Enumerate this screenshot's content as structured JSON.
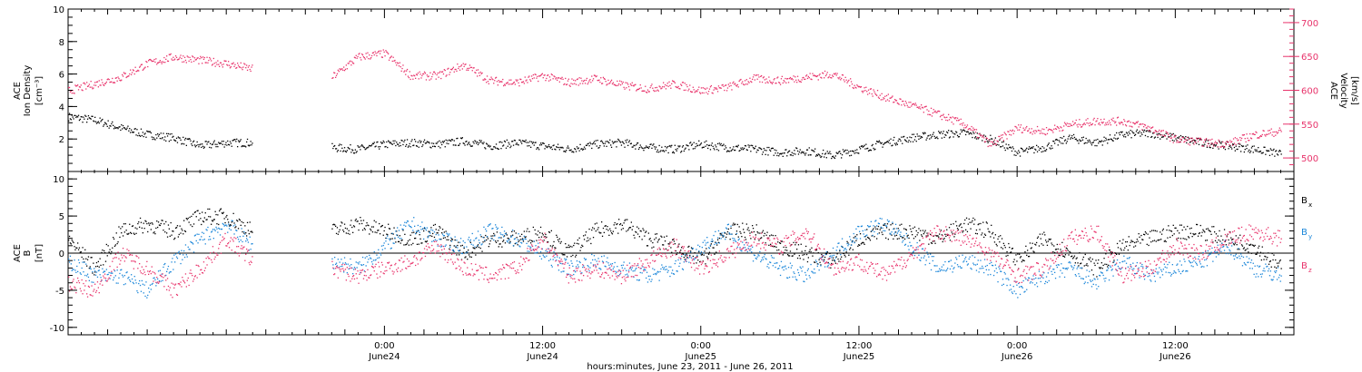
{
  "chart_data": [
    {
      "type": "scatter",
      "panel": "plasma",
      "left_axis": {
        "label_lines": [
          "ACE",
          "Ion Density",
          "[cm⁻³]"
        ],
        "ylim": [
          0,
          10
        ],
        "ticks": [
          2,
          4,
          6,
          8,
          10
        ],
        "tick_labels": [
          "2",
          "4",
          "6",
          "8",
          "10"
        ]
      },
      "right_axis": {
        "label_lines": [
          "ACE",
          "Velocity",
          "[km/s]"
        ],
        "ylim": [
          480,
          720
        ],
        "ticks": [
          500,
          550,
          600,
          650,
          700
        ],
        "tick_labels": [
          "500",
          "550",
          "600",
          "650",
          "700"
        ],
        "color": "#e8336b"
      },
      "series": [
        {
          "color": "#000000",
          "axis": "left",
          "points": [
            [
              0,
              3.4
            ],
            [
              2,
              3.2
            ],
            [
              4,
              2.7
            ],
            [
              6,
              2.3
            ],
            [
              8,
              2.1
            ],
            [
              10,
              1.6
            ],
            [
              12,
              1.8
            ],
            [
              14,
              1.8
            ],
            [
              20,
              1.5
            ],
            [
              22,
              1.4
            ],
            [
              24,
              1.7
            ],
            [
              26,
              1.8
            ],
            [
              28,
              1.7
            ],
            [
              30,
              1.9
            ],
            [
              32,
              1.6
            ],
            [
              34,
              1.8
            ],
            [
              36,
              1.6
            ],
            [
              38,
              1.4
            ],
            [
              40,
              1.7
            ],
            [
              42,
              1.8
            ],
            [
              44,
              1.5
            ],
            [
              46,
              1.4
            ],
            [
              48,
              1.7
            ],
            [
              50,
              1.5
            ],
            [
              52,
              1.4
            ],
            [
              54,
              1.2
            ],
            [
              56,
              1.3
            ],
            [
              58,
              1.0
            ],
            [
              60,
              1.4
            ],
            [
              62,
              1.8
            ],
            [
              64,
              2.1
            ],
            [
              66,
              2.3
            ],
            [
              68,
              2.4
            ],
            [
              70,
              2.0
            ],
            [
              72,
              1.2
            ],
            [
              74,
              1.5
            ],
            [
              76,
              2.1
            ],
            [
              78,
              1.8
            ],
            [
              80,
              2.3
            ],
            [
              82,
              2.4
            ],
            [
              84,
              2.1
            ],
            [
              86,
              1.8
            ],
            [
              88,
              1.6
            ],
            [
              90,
              1.4
            ],
            [
              92,
              1.1
            ]
          ]
        },
        {
          "color": "#e8336b",
          "axis": "right",
          "points": [
            [
              0,
              600
            ],
            [
              2,
              610
            ],
            [
              4,
              620
            ],
            [
              6,
              640
            ],
            [
              8,
              650
            ],
            [
              10,
              645
            ],
            [
              12,
              640
            ],
            [
              14,
              632
            ],
            [
              20,
              620
            ],
            [
              22,
              650
            ],
            [
              24,
              655
            ],
            [
              26,
              622
            ],
            [
              28,
              622
            ],
            [
              30,
              638
            ],
            [
              32,
              615
            ],
            [
              34,
              612
            ],
            [
              36,
              622
            ],
            [
              38,
              612
            ],
            [
              40,
              618
            ],
            [
              42,
              608
            ],
            [
              44,
              603
            ],
            [
              46,
              610
            ],
            [
              48,
              600
            ],
            [
              50,
              605
            ],
            [
              52,
              618
            ],
            [
              54,
              615
            ],
            [
              56,
              620
            ],
            [
              58,
              625
            ],
            [
              60,
              605
            ],
            [
              62,
              590
            ],
            [
              64,
              578
            ],
            [
              66,
              565
            ],
            [
              68,
              550
            ],
            [
              70,
              520
            ],
            [
              72,
              545
            ],
            [
              74,
              540
            ],
            [
              76,
              550
            ],
            [
              78,
              555
            ],
            [
              80,
              555
            ],
            [
              82,
              545
            ],
            [
              84,
              528
            ],
            [
              86,
              524
            ],
            [
              88,
              522
            ],
            [
              90,
              535
            ],
            [
              92,
              540
            ]
          ]
        }
      ]
    },
    {
      "type": "scatter",
      "panel": "magnetic-field",
      "left_axis": {
        "label_lines": [
          "ACE",
          "B",
          "[nT]"
        ],
        "ylim": [
          -11,
          11
        ],
        "ticks": [
          -10,
          -5,
          0,
          5,
          10
        ],
        "tick_labels": [
          "-10",
          "-5",
          "0",
          "5",
          "10"
        ]
      },
      "zero_line": true,
      "legend": [
        {
          "label": "B",
          "sub": "x",
          "color": "#000000"
        },
        {
          "label": "B",
          "sub": "y",
          "color": "#1a86d9"
        },
        {
          "label": "B",
          "sub": "z",
          "color": "#e8336b"
        }
      ],
      "legend_position": "right",
      "series": [
        {
          "name": "Bx",
          "color": "#000000",
          "points": [
            [
              0,
              2
            ],
            [
              2,
              -2
            ],
            [
              4,
              3
            ],
            [
              6,
              4
            ],
            [
              8,
              3
            ],
            [
              10,
              5
            ],
            [
              12,
              5
            ],
            [
              14,
              3
            ],
            [
              20,
              3
            ],
            [
              22,
              4
            ],
            [
              24,
              3
            ],
            [
              26,
              2
            ],
            [
              28,
              3
            ],
            [
              30,
              0
            ],
            [
              32,
              2
            ],
            [
              34,
              2
            ],
            [
              36,
              3
            ],
            [
              38,
              0
            ],
            [
              40,
              3
            ],
            [
              42,
              4
            ],
            [
              44,
              2
            ],
            [
              46,
              1
            ],
            [
              48,
              -1
            ],
            [
              50,
              3
            ],
            [
              52,
              3
            ],
            [
              54,
              1
            ],
            [
              56,
              0
            ],
            [
              58,
              -1
            ],
            [
              60,
              2
            ],
            [
              62,
              3
            ],
            [
              64,
              3
            ],
            [
              66,
              2
            ],
            [
              68,
              4
            ],
            [
              70,
              3
            ],
            [
              72,
              -1
            ],
            [
              74,
              2
            ],
            [
              76,
              0
            ],
            [
              78,
              -2
            ],
            [
              80,
              1
            ],
            [
              82,
              2
            ],
            [
              84,
              3
            ],
            [
              86,
              3
            ],
            [
              88,
              2
            ],
            [
              90,
              1
            ],
            [
              92,
              -2
            ]
          ]
        },
        {
          "name": "By",
          "color": "#1a86d9",
          "points": [
            [
              0,
              -1
            ],
            [
              2,
              -3
            ],
            [
              4,
              -3
            ],
            [
              6,
              -5
            ],
            [
              8,
              -1
            ],
            [
              10,
              2
            ],
            [
              12,
              4
            ],
            [
              14,
              1
            ],
            [
              20,
              -1
            ],
            [
              22,
              -2
            ],
            [
              24,
              1
            ],
            [
              26,
              4
            ],
            [
              28,
              2
            ],
            [
              30,
              1
            ],
            [
              32,
              3
            ],
            [
              34,
              2
            ],
            [
              36,
              0
            ],
            [
              38,
              -2
            ],
            [
              40,
              -1
            ],
            [
              42,
              -2
            ],
            [
              44,
              -3
            ],
            [
              46,
              -2
            ],
            [
              48,
              1
            ],
            [
              50,
              3
            ],
            [
              52,
              0
            ],
            [
              54,
              -2
            ],
            [
              56,
              -3
            ],
            [
              58,
              0
            ],
            [
              60,
              3
            ],
            [
              62,
              4
            ],
            [
              64,
              1
            ],
            [
              66,
              -2
            ],
            [
              68,
              -1
            ],
            [
              70,
              -2
            ],
            [
              72,
              -5
            ],
            [
              74,
              -3
            ],
            [
              76,
              -2
            ],
            [
              78,
              -4
            ],
            [
              80,
              -1
            ],
            [
              82,
              -3
            ],
            [
              84,
              -2
            ],
            [
              86,
              -1
            ],
            [
              88,
              1
            ],
            [
              90,
              -2
            ],
            [
              92,
              -3
            ]
          ]
        },
        {
          "name": "Bz",
          "color": "#e8336b",
          "points": [
            [
              0,
              -4
            ],
            [
              2,
              -5
            ],
            [
              4,
              0
            ],
            [
              6,
              -2
            ],
            [
              8,
              -5
            ],
            [
              10,
              -2
            ],
            [
              12,
              2
            ],
            [
              14,
              -1
            ],
            [
              20,
              -2
            ],
            [
              22,
              -3
            ],
            [
              24,
              -2
            ],
            [
              26,
              -1
            ],
            [
              28,
              1
            ],
            [
              30,
              -2
            ],
            [
              32,
              -3
            ],
            [
              34,
              -2
            ],
            [
              36,
              2
            ],
            [
              38,
              -3
            ],
            [
              40,
              -2
            ],
            [
              42,
              -3
            ],
            [
              44,
              -1
            ],
            [
              46,
              1
            ],
            [
              48,
              -2
            ],
            [
              50,
              0
            ],
            [
              52,
              2
            ],
            [
              54,
              1
            ],
            [
              56,
              3
            ],
            [
              58,
              -2
            ],
            [
              60,
              -1
            ],
            [
              62,
              -3
            ],
            [
              64,
              0
            ],
            [
              66,
              3
            ],
            [
              68,
              2
            ],
            [
              70,
              0
            ],
            [
              72,
              -3
            ],
            [
              74,
              -2
            ],
            [
              76,
              2
            ],
            [
              78,
              3
            ],
            [
              80,
              -3
            ],
            [
              82,
              -2
            ],
            [
              84,
              1
            ],
            [
              86,
              0
            ],
            [
              88,
              2
            ],
            [
              90,
              3
            ],
            [
              92,
              2
            ]
          ]
        }
      ]
    }
  ],
  "x_axis": {
    "xlim": [
      0,
      93
    ],
    "major_ticks": [
      24,
      36,
      48,
      60,
      72,
      84
    ],
    "tick_labels": [
      {
        "time": "0:00",
        "date": "June24"
      },
      {
        "time": "12:00",
        "date": "June24"
      },
      {
        "time": "0:00",
        "date": "June25"
      },
      {
        "time": "12:00",
        "date": "June25"
      },
      {
        "time": "0:00",
        "date": "June26"
      },
      {
        "time": "12:00",
        "date": "June26"
      }
    ],
    "title": "hours:minutes, June 23, 2011 - June 26, 2011"
  }
}
